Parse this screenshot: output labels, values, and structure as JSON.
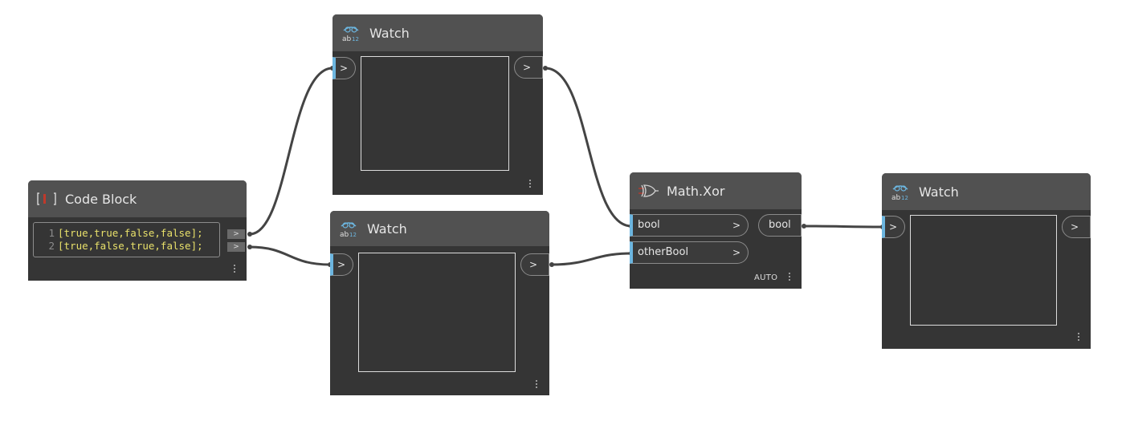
{
  "nodes": {
    "code_block": {
      "title": "Code Block",
      "lines": [
        {
          "num": "1",
          "text": "[true,true,false,false];"
        },
        {
          "num": "2",
          "text": "[true,false,true,false];"
        }
      ],
      "outputs": [
        ">",
        ">"
      ]
    },
    "watch_top": {
      "title": "Watch",
      "input_arrow": ">",
      "output_arrow": ">"
    },
    "watch_bottom": {
      "title": "Watch",
      "input_arrow": ">",
      "output_arrow": ">"
    },
    "math_xor": {
      "title": "Math.Xor",
      "inputs": [
        {
          "label": "bool",
          "arrow": ">"
        },
        {
          "label": "otherBool",
          "arrow": ">"
        }
      ],
      "output": {
        "label": "bool"
      },
      "lacing": "AUTO"
    },
    "watch_right": {
      "title": "Watch",
      "input_arrow": ">",
      "output_arrow": ">"
    }
  },
  "colors": {
    "canvas": "#ffffff",
    "node_body": "#353535",
    "node_header": "#515151",
    "input_accent": "#6cb6e0",
    "wire": "#444444",
    "code_text": "#e8e06a"
  },
  "icons": {
    "code_block": "code-block-icon",
    "watch": "watch-icon",
    "xor": "xor-gate-icon",
    "menu": "vertical-dots-icon"
  }
}
